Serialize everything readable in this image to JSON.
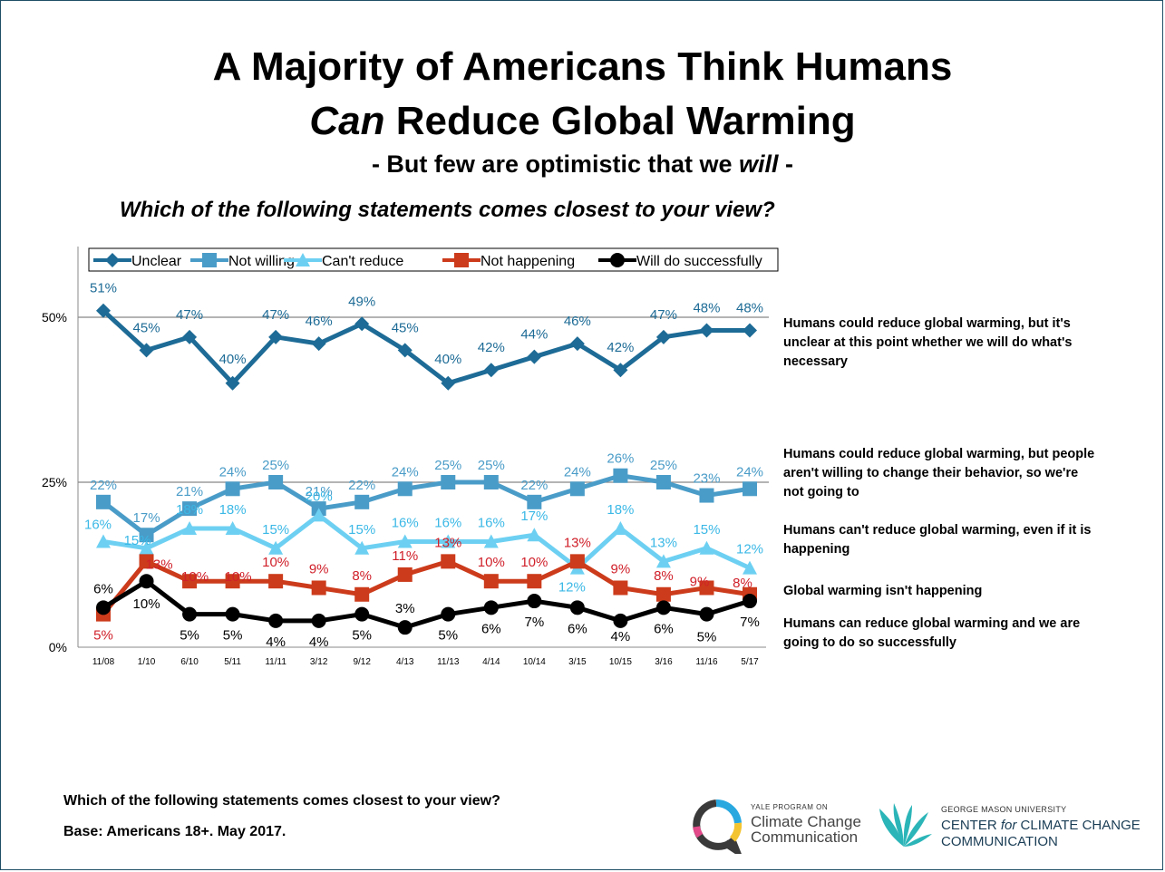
{
  "header": {
    "title_line1": "A Majority of Americans Think Humans",
    "title_line2_italic": "Can",
    "title_line2_rest": "Reduce Global Warming",
    "subtitle_pre": "- But few are optimistic that we",
    "subtitle_italic": "will",
    "subtitle_post": "-",
    "question": "Which of the following statements comes closest to your view?"
  },
  "chart_data": {
    "type": "line",
    "categories": [
      "11/08",
      "1/10",
      "6/10",
      "5/11",
      "11/11",
      "3/12",
      "9/12",
      "4/13",
      "11/13",
      "4/14",
      "10/14",
      "3/15",
      "10/15",
      "3/16",
      "11/16",
      "5/17"
    ],
    "ylim": [
      0,
      55
    ],
    "yticks": [
      0,
      25,
      50
    ],
    "ytick_labels": [
      "0%",
      "25%",
      "50%"
    ],
    "grid": false,
    "legend_position": "top",
    "series": [
      {
        "name": "Unclear",
        "color": "#1d6b96",
        "marker": "diamond",
        "label_color": "#1d6b96",
        "values": [
          51,
          45,
          47,
          40,
          47,
          46,
          49,
          45,
          40,
          42,
          44,
          46,
          42,
          47,
          48,
          48
        ],
        "description": "Humans could reduce global warming, but it's unclear at this point whether we will do what's necessary"
      },
      {
        "name": "Not willing",
        "color": "#4a9cc8",
        "marker": "square",
        "label_color": "#4a9cc8",
        "values": [
          22,
          17,
          21,
          24,
          25,
          21,
          22,
          24,
          25,
          25,
          22,
          24,
          26,
          25,
          23,
          24
        ],
        "description": "Humans could reduce global warming, but people aren't willing to change their behavior, so we're not going to"
      },
      {
        "name": "Can't reduce",
        "color": "#6dd0f2",
        "marker": "triangle",
        "label_color": "#3bb8e6",
        "values": [
          16,
          15,
          18,
          18,
          15,
          20,
          15,
          16,
          16,
          16,
          17,
          12,
          18,
          13,
          15,
          12
        ],
        "description": "Humans can't reduce global warming, even if it is happening"
      },
      {
        "name": "Not happening",
        "color": "#cc3b1b",
        "marker": "square",
        "label_color": "#d0202a",
        "values": [
          5,
          13,
          10,
          10,
          10,
          9,
          8,
          11,
          13,
          10,
          10,
          13,
          9,
          8,
          9,
          8
        ],
        "description": "Global warming isn't happening"
      },
      {
        "name": "Will do successfully",
        "color": "#000000",
        "marker": "circle",
        "label_color": "#000000",
        "values": [
          6,
          10,
          5,
          5,
          4,
          4,
          5,
          3,
          5,
          6,
          7,
          6,
          4,
          6,
          5,
          7
        ],
        "description": "Humans can reduce global warming and we are going to do so successfully"
      }
    ]
  },
  "footer": {
    "line1": "Which of the following statements  comes closest to your view?",
    "line2": "Base: Americans 18+. May 2017."
  },
  "logos": {
    "yale_small": "YALE PROGRAM ON",
    "yale_line1": "Climate Change",
    "yale_line2": "Communication",
    "gmu_small": "GEORGE MASON UNIVERSITY",
    "gmu_line1_pre": "CENTER",
    "gmu_line1_italic": "for",
    "gmu_line1_post": "CLIMATE CHANGE",
    "gmu_line2": "COMMUNICATION"
  }
}
